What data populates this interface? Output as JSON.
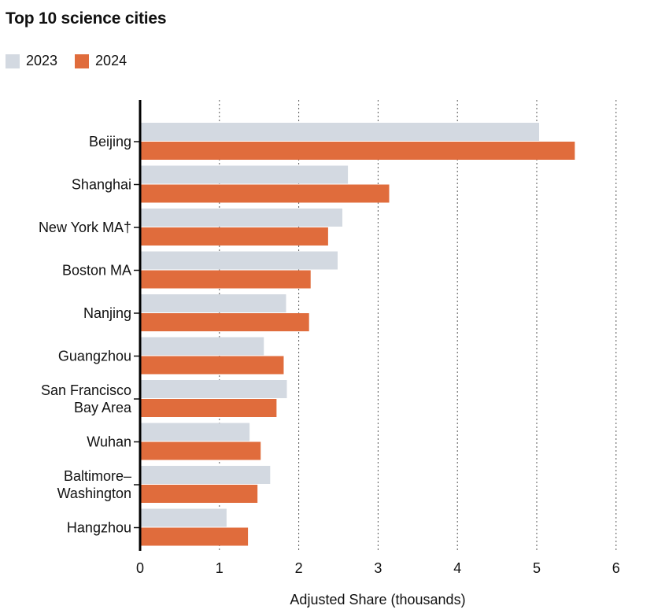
{
  "chart_data": {
    "type": "bar",
    "orientation": "horizontal",
    "title": "Top 10 science cities",
    "xlabel": "Adjusted Share (thousands)",
    "ylabel": "",
    "xlim": [
      0,
      6
    ],
    "xticks": [
      "0",
      "1",
      "2",
      "3",
      "4",
      "5",
      "6"
    ],
    "grid": "vertical dotted",
    "legend_placement": "top-left",
    "categories": [
      [
        "Beijing"
      ],
      [
        "Shanghai"
      ],
      [
        "New York MA†"
      ],
      [
        "Boston MA"
      ],
      [
        "Nanjing"
      ],
      [
        "Guangzhou"
      ],
      [
        "San Francisco",
        "Bay Area"
      ],
      [
        "Wuhan"
      ],
      [
        "Baltimore–",
        "Washington"
      ],
      [
        "Hangzhou"
      ]
    ],
    "series": [
      {
        "name": "2023",
        "color": "#d3d9e1",
        "values": [
          5.03,
          2.62,
          2.55,
          2.49,
          1.84,
          1.56,
          1.85,
          1.38,
          1.64,
          1.09
        ]
      },
      {
        "name": "2024",
        "color": "#e06c3c",
        "values": [
          5.48,
          3.14,
          2.37,
          2.15,
          2.13,
          1.81,
          1.72,
          1.52,
          1.48,
          1.36
        ]
      }
    ]
  }
}
